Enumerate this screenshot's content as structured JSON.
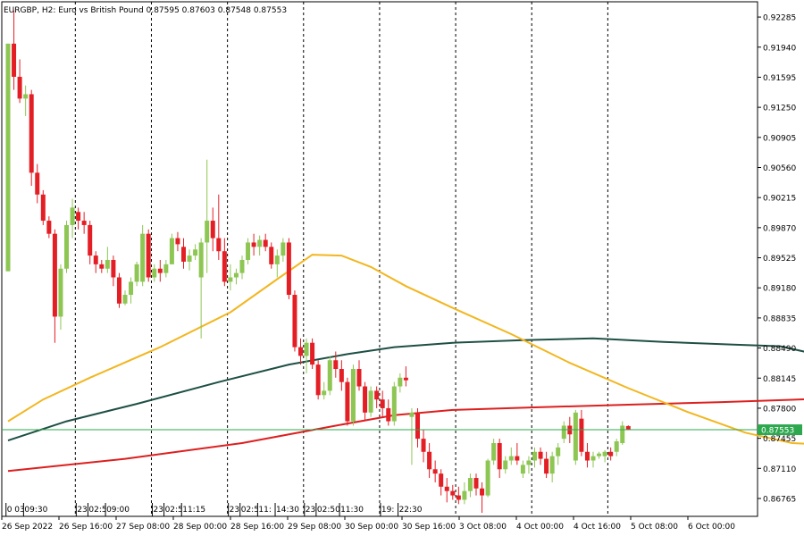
{
  "chart_data": {
    "type": "candlestick",
    "title": "EURGBP, H2:  Euro vs British Pound  0.87595 0.87603 0.87548 0.87553",
    "symbol": "EURGBP",
    "timeframe": "H2",
    "ohlc": {
      "open": "0.87595",
      "high": "0.87603",
      "low": "0.87548",
      "close": "0.87553"
    },
    "ylim": [
      0.8656,
      0.9246
    ],
    "y_ticks": [
      "0.92285",
      "0.91940",
      "0.91595",
      "0.91250",
      "0.90905",
      "0.90560",
      "0.90215",
      "0.89870",
      "0.89525",
      "0.89180",
      "0.88835",
      "0.88490",
      "0.88145",
      "0.87800",
      "0.87455",
      "0.87110",
      "0.86765"
    ],
    "x_ticks": [
      "26 Sep 2022",
      "26 Sep 16:00",
      "27 Sep 08:00",
      "28 Sep 00:00",
      "28 Sep 16:00",
      "29 Sep 08:00",
      "30 Sep 00:00",
      "30 Sep 16:00",
      "3 Oct 08:00",
      "4 Oct 00:00",
      "4 Oct 16:00",
      "5 Oct 08:00",
      "6 Oct 00:00"
    ],
    "time_labels": [
      {
        "text": "0 03:30",
        "bar": 0
      },
      {
        "text": "09:30",
        "bar": 3
      },
      {
        "text": "23:",
        "bar": 12
      },
      {
        "text": "02:50",
        "bar": 14
      },
      {
        "text": "09:00",
        "bar": 17
      },
      {
        "text": "23:",
        "bar": 25
      },
      {
        "text": "02:50",
        "bar": 27
      },
      {
        "text": "11:15",
        "bar": 30
      },
      {
        "text": "23:",
        "bar": 38
      },
      {
        "text": "02:50",
        "bar": 40
      },
      {
        "text": "11:",
        "bar": 43
      },
      {
        "text": "14:30",
        "bar": 46
      },
      {
        "text": "23:",
        "bar": 51
      },
      {
        "text": "02:50",
        "bar": 53
      },
      {
        "text": "11:30",
        "bar": 57
      },
      {
        "text": "19:",
        "bar": 64
      },
      {
        "text": "22:30",
        "bar": 67
      }
    ],
    "separator_bars": [
      12,
      25,
      38,
      51,
      64,
      77,
      90,
      103
    ],
    "current_price": "0.87553",
    "current_price_value": 0.87553,
    "colors": {
      "bull": "#8dc653",
      "bear": "#e31e24",
      "ma_short": "#f2b61f",
      "ma_mid": "#1e4f44",
      "ma_long": "#dd1f1f",
      "current_line": "#2ea84f",
      "current_label_bg": "#2ea84f",
      "grid": "#000000",
      "axis": "#000000"
    },
    "candles": [
      [
        0.8937,
        0.9198,
        0.8937,
        0.9198
      ],
      [
        0.9198,
        0.9236,
        0.9145,
        0.916
      ],
      [
        0.916,
        0.918,
        0.913,
        0.9135
      ],
      [
        0.9135,
        0.915,
        0.9115,
        0.914
      ],
      [
        0.914,
        0.9145,
        0.9035,
        0.905
      ],
      [
        0.905,
        0.906,
        0.9015,
        0.9025
      ],
      [
        0.9025,
        0.903,
        0.899,
        0.8995
      ],
      [
        0.8995,
        0.9,
        0.8975,
        0.898
      ],
      [
        0.898,
        0.8985,
        0.8855,
        0.8885
      ],
      [
        0.8885,
        0.8945,
        0.887,
        0.894
      ],
      [
        0.894,
        0.8995,
        0.8935,
        0.899
      ],
      [
        0.899,
        0.902,
        0.8975,
        0.901
      ],
      [
        0.9005,
        0.901,
        0.8985,
        0.8995
      ],
      [
        0.8995,
        0.9005,
        0.898,
        0.899
      ],
      [
        0.899,
        0.8995,
        0.8945,
        0.8955
      ],
      [
        0.8955,
        0.896,
        0.8935,
        0.8945
      ],
      [
        0.8945,
        0.895,
        0.8935,
        0.894
      ],
      [
        0.894,
        0.8965,
        0.8935,
        0.895
      ],
      [
        0.895,
        0.8955,
        0.892,
        0.893
      ],
      [
        0.893,
        0.8935,
        0.8895,
        0.89
      ],
      [
        0.89,
        0.8915,
        0.8898,
        0.891
      ],
      [
        0.891,
        0.893,
        0.89,
        0.8925
      ],
      [
        0.8925,
        0.8948,
        0.892,
        0.8945
      ],
      [
        0.8925,
        0.899,
        0.892,
        0.898
      ],
      [
        0.898,
        0.8985,
        0.8925,
        0.893
      ],
      [
        0.893,
        0.8945,
        0.8925,
        0.894
      ],
      [
        0.894,
        0.895,
        0.8925,
        0.8935
      ],
      [
        0.8935,
        0.895,
        0.893,
        0.8945
      ],
      [
        0.8945,
        0.898,
        0.8945,
        0.8975
      ],
      [
        0.8975,
        0.8982,
        0.896,
        0.8968
      ],
      [
        0.8965,
        0.8975,
        0.894,
        0.8948
      ],
      [
        0.8948,
        0.8962,
        0.8938,
        0.8955
      ],
      [
        0.8955,
        0.8968,
        0.895,
        0.8962
      ],
      [
        0.893,
        0.8975,
        0.886,
        0.897
      ],
      [
        0.897,
        0.9065,
        0.8935,
        0.8995
      ],
      [
        0.8995,
        0.901,
        0.896,
        0.8975
      ],
      [
        0.8975,
        0.9025,
        0.895,
        0.896
      ],
      [
        0.896,
        0.8975,
        0.892,
        0.8925
      ],
      [
        0.8925,
        0.8945,
        0.8915,
        0.893
      ],
      [
        0.893,
        0.894,
        0.8922,
        0.8935
      ],
      [
        0.8935,
        0.8955,
        0.8928,
        0.895
      ],
      [
        0.895,
        0.8975,
        0.8945,
        0.897
      ],
      [
        0.897,
        0.898,
        0.8955,
        0.8965
      ],
      [
        0.8965,
        0.8978,
        0.8955,
        0.8973
      ],
      [
        0.8973,
        0.898,
        0.896,
        0.8965
      ],
      [
        0.8965,
        0.897,
        0.894,
        0.8945
      ],
      [
        0.8945,
        0.8962,
        0.893,
        0.8955
      ],
      [
        0.8955,
        0.8975,
        0.8948,
        0.897
      ],
      [
        0.897,
        0.8975,
        0.8905,
        0.891
      ],
      [
        0.891,
        0.8915,
        0.8845,
        0.885
      ],
      [
        0.885,
        0.886,
        0.883,
        0.884
      ],
      [
        0.884,
        0.886,
        0.882,
        0.8855
      ],
      [
        0.8855,
        0.886,
        0.8825,
        0.883
      ],
      [
        0.883,
        0.8835,
        0.879,
        0.8795
      ],
      [
        0.8795,
        0.881,
        0.879,
        0.88
      ],
      [
        0.88,
        0.884,
        0.8795,
        0.8835
      ],
      [
        0.8835,
        0.8845,
        0.8815,
        0.8825
      ],
      [
        0.8825,
        0.8835,
        0.88,
        0.881
      ],
      [
        0.881,
        0.8815,
        0.876,
        0.8765
      ],
      [
        0.8765,
        0.883,
        0.876,
        0.8825
      ],
      [
        0.8825,
        0.8835,
        0.88,
        0.8805
      ],
      [
        0.8805,
        0.881,
        0.8765,
        0.8775
      ],
      [
        0.8775,
        0.8805,
        0.877,
        0.88
      ],
      [
        0.88,
        0.8805,
        0.878,
        0.879
      ],
      [
        0.879,
        0.88,
        0.877,
        0.878
      ],
      [
        0.878,
        0.879,
        0.876,
        0.8765
      ],
      [
        0.8765,
        0.881,
        0.876,
        0.8805
      ],
      [
        0.8805,
        0.882,
        0.8798,
        0.8815
      ],
      [
        0.8815,
        0.8828,
        0.8805,
        0.8812
      ],
      [
        0.877,
        0.878,
        0.8715,
        0.8775
      ],
      [
        0.8775,
        0.878,
        0.8735,
        0.8745
      ],
      [
        0.8745,
        0.8755,
        0.8718,
        0.873
      ],
      [
        0.873,
        0.874,
        0.87,
        0.871
      ],
      [
        0.871,
        0.872,
        0.8695,
        0.8705
      ],
      [
        0.8705,
        0.871,
        0.868,
        0.869
      ],
      [
        0.869,
        0.87,
        0.8672,
        0.8685
      ],
      [
        0.8685,
        0.8692,
        0.8675,
        0.868
      ],
      [
        0.868,
        0.869,
        0.867,
        0.8675
      ],
      [
        0.8675,
        0.8695,
        0.867,
        0.8685
      ],
      [
        0.8685,
        0.8705,
        0.8678,
        0.87
      ],
      [
        0.87,
        0.8705,
        0.868,
        0.8688
      ],
      [
        0.8688,
        0.8695,
        0.866,
        0.868
      ],
      [
        0.868,
        0.8722,
        0.8678,
        0.872
      ],
      [
        0.872,
        0.8745,
        0.8715,
        0.874
      ],
      [
        0.874,
        0.8745,
        0.87,
        0.871
      ],
      [
        0.871,
        0.8725,
        0.8705,
        0.872
      ],
      [
        0.872,
        0.8735,
        0.8715,
        0.8725
      ],
      [
        0.8725,
        0.874,
        0.8715,
        0.872
      ],
      [
        0.8705,
        0.872,
        0.87,
        0.8715
      ],
      [
        0.8715,
        0.8725,
        0.8705,
        0.872
      ],
      [
        0.872,
        0.8735,
        0.8712,
        0.873
      ],
      [
        0.873,
        0.8735,
        0.8715,
        0.8722
      ],
      [
        0.8722,
        0.873,
        0.87,
        0.8705
      ],
      [
        0.8705,
        0.873,
        0.8695,
        0.8725
      ],
      [
        0.8725,
        0.874,
        0.8715,
        0.8735
      ],
      [
        0.8745,
        0.8765,
        0.874,
        0.876
      ],
      [
        0.876,
        0.877,
        0.874,
        0.875
      ],
      [
        0.872,
        0.8778,
        0.8715,
        0.8775
      ],
      [
        0.8768,
        0.8778,
        0.8725,
        0.873
      ],
      [
        0.873,
        0.874,
        0.8712,
        0.872
      ],
      [
        0.872,
        0.873,
        0.8712,
        0.8725
      ],
      [
        0.8725,
        0.873,
        0.8722,
        0.8728
      ],
      [
        0.8725,
        0.8732,
        0.8718,
        0.873
      ],
      [
        0.873,
        0.8735,
        0.872,
        0.8725
      ],
      [
        0.873,
        0.8745,
        0.8725,
        0.8742
      ],
      [
        0.874,
        0.8765,
        0.8738,
        0.876
      ],
      [
        0.87595,
        0.87603,
        0.87548,
        0.87553
      ]
    ],
    "ma_short": [
      [
        0,
        0.8765
      ],
      [
        6,
        0.879
      ],
      [
        14,
        0.8815
      ],
      [
        26,
        0.885
      ],
      [
        38,
        0.889
      ],
      [
        46,
        0.8928
      ],
      [
        52,
        0.8956
      ],
      [
        57,
        0.8955
      ],
      [
        62,
        0.8942
      ],
      [
        68,
        0.892
      ],
      [
        76,
        0.8895
      ],
      [
        86,
        0.8865
      ],
      [
        96,
        0.8832
      ],
      [
        106,
        0.8803
      ],
      [
        116,
        0.8776
      ],
      [
        126,
        0.8752
      ],
      [
        134,
        0.874
      ],
      [
        140,
        0.8738
      ]
    ],
    "ma_mid": [
      [
        0,
        0.8743
      ],
      [
        10,
        0.8765
      ],
      [
        22,
        0.8785
      ],
      [
        36,
        0.881
      ],
      [
        48,
        0.883
      ],
      [
        58,
        0.8842
      ],
      [
        66,
        0.885
      ],
      [
        76,
        0.8855
      ],
      [
        88,
        0.8858
      ],
      [
        100,
        0.886
      ],
      [
        112,
        0.8856
      ],
      [
        124,
        0.8853
      ],
      [
        132,
        0.8851
      ],
      [
        136,
        0.8845
      ],
      [
        140,
        0.8835
      ]
    ],
    "ma_long": [
      [
        0,
        0.8708
      ],
      [
        20,
        0.8722
      ],
      [
        40,
        0.874
      ],
      [
        56,
        0.876
      ],
      [
        66,
        0.8772
      ],
      [
        76,
        0.8778
      ],
      [
        90,
        0.8781
      ],
      [
        106,
        0.8784
      ],
      [
        122,
        0.8787
      ],
      [
        140,
        0.8791
      ]
    ]
  }
}
